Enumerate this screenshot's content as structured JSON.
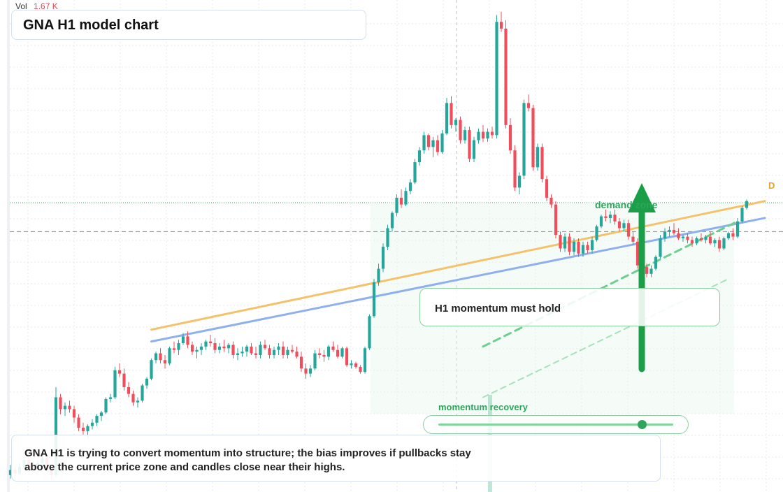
{
  "header": {
    "title": "GNA H1 model chart",
    "volume_label": "Vol",
    "volume_value": "1.67 K"
  },
  "annotations": {
    "callout": "H1 momentum must hold",
    "demand_zone": "demand zone",
    "momentum_label": "momentum recovery",
    "momentum_level": 0.86,
    "end_marker": "D",
    "summary": "GNA H1 is trying to convert momentum into structure; the bias improves if pullbacks stay above the current price zone and candles close near their highs."
  },
  "colors": {
    "up": "#26a69a",
    "down": "#ef4f5d",
    "orange_trendline": "#f5c26b",
    "blue_trendline": "#8fb0ee",
    "green_accent": "#2ea55b"
  },
  "chart_data": {
    "type": "candlestick",
    "title": "GNA H1 model chart",
    "series": [
      {
        "name": "GNA H1",
        "ohlc": [
          [
            1.0,
            1.6,
            0.8,
            1.3
          ],
          [
            1.3,
            1.5,
            0.9,
            1.1
          ],
          [
            1.1,
            1.7,
            1.0,
            1.5
          ],
          [
            1.5,
            2.1,
            1.3,
            1.9
          ],
          [
            1.9,
            2.3,
            1.4,
            1.6
          ],
          [
            1.6,
            1.8,
            1.2,
            1.4
          ],
          [
            1.4,
            1.9,
            1.2,
            1.7
          ],
          [
            1.7,
            2.2,
            1.5,
            2.0
          ],
          [
            2.0,
            2.1,
            1.3,
            1.5
          ],
          [
            1.5,
            1.6,
            0.8,
            1.0
          ],
          [
            1.0,
            6.2,
            0.9,
            5.6
          ],
          [
            5.6,
            5.8,
            4.6,
            4.9
          ],
          [
            4.9,
            5.3,
            4.5,
            5.1
          ],
          [
            5.1,
            5.4,
            4.7,
            4.9
          ],
          [
            4.9,
            5.1,
            4.1,
            4.4
          ],
          [
            4.4,
            4.6,
            3.6,
            3.8
          ],
          [
            3.8,
            4.1,
            3.4,
            3.6
          ],
          [
            3.6,
            4.0,
            3.2,
            3.9
          ],
          [
            3.9,
            4.3,
            3.7,
            4.1
          ],
          [
            4.1,
            4.6,
            3.9,
            4.5
          ],
          [
            4.5,
            4.8,
            4.2,
            4.7
          ],
          [
            4.7,
            5.6,
            4.6,
            5.5
          ],
          [
            5.5,
            5.8,
            5.3,
            5.6
          ],
          [
            5.6,
            7.4,
            5.5,
            7.2
          ],
          [
            7.2,
            7.6,
            6.8,
            7.0
          ],
          [
            7.0,
            7.3,
            6.0,
            6.2
          ],
          [
            6.2,
            6.5,
            5.6,
            5.8
          ],
          [
            5.8,
            6.0,
            5.1,
            5.3
          ],
          [
            5.3,
            5.6,
            5.0,
            5.4
          ],
          [
            5.4,
            6.4,
            5.3,
            6.3
          ],
          [
            6.3,
            6.8,
            6.1,
            6.7
          ],
          [
            6.7,
            7.9,
            6.6,
            7.8
          ],
          [
            7.8,
            8.3,
            7.6,
            8.2
          ],
          [
            8.2,
            8.5,
            7.6,
            7.8
          ],
          [
            7.8,
            8.1,
            7.3,
            7.6
          ],
          [
            7.6,
            8.6,
            7.5,
            8.5
          ],
          [
            8.5,
            8.9,
            8.2,
            8.4
          ],
          [
            8.4,
            9.0,
            8.1,
            8.8
          ],
          [
            8.8,
            9.4,
            8.7,
            9.2
          ],
          [
            9.2,
            9.5,
            8.5,
            8.7
          ],
          [
            8.7,
            8.9,
            8.1,
            8.3
          ],
          [
            8.3,
            8.6,
            7.9,
            8.4
          ],
          [
            8.4,
            8.8,
            8.1,
            8.6
          ],
          [
            8.6,
            9.0,
            8.4,
            8.9
          ],
          [
            8.9,
            9.3,
            8.6,
            8.8
          ],
          [
            8.8,
            9.1,
            8.2,
            8.4
          ],
          [
            8.4,
            8.8,
            8.2,
            8.6
          ],
          [
            8.6,
            9.0,
            8.3,
            8.5
          ],
          [
            8.5,
            8.8,
            8.2,
            8.7
          ],
          [
            8.7,
            8.9,
            7.9,
            8.1
          ],
          [
            8.1,
            8.5,
            7.8,
            8.2
          ],
          [
            8.2,
            8.6,
            8.0,
            8.3
          ],
          [
            8.3,
            8.7,
            8.0,
            8.6
          ],
          [
            8.6,
            8.8,
            8.1,
            8.2
          ],
          [
            8.2,
            8.6,
            7.9,
            8.1
          ],
          [
            8.1,
            8.9,
            7.9,
            8.7
          ],
          [
            8.7,
            9.0,
            8.4,
            8.5
          ],
          [
            8.5,
            8.7,
            7.9,
            8.1
          ],
          [
            8.1,
            8.6,
            7.9,
            8.4
          ],
          [
            8.4,
            8.8,
            8.1,
            8.6
          ],
          [
            8.6,
            8.9,
            7.9,
            8.1
          ],
          [
            8.1,
            8.6,
            7.9,
            8.4
          ],
          [
            8.4,
            8.7,
            8.2,
            8.3
          ],
          [
            8.3,
            8.6,
            7.9,
            8.0
          ],
          [
            8.0,
            8.3,
            7.1,
            7.3
          ],
          [
            7.3,
            7.6,
            6.7,
            7.0
          ],
          [
            7.0,
            7.5,
            6.8,
            7.3
          ],
          [
            7.3,
            8.4,
            7.2,
            8.2
          ],
          [
            8.2,
            8.5,
            7.9,
            8.1
          ],
          [
            8.1,
            8.4,
            7.7,
            8.0
          ],
          [
            8.0,
            8.7,
            7.8,
            8.6
          ],
          [
            8.6,
            8.9,
            8.3,
            8.4
          ],
          [
            8.4,
            8.7,
            7.9,
            8.0
          ],
          [
            8.0,
            8.6,
            7.9,
            8.5
          ],
          [
            8.5,
            8.6,
            7.4,
            7.5
          ],
          [
            7.5,
            7.8,
            7.3,
            7.6
          ],
          [
            7.6,
            7.7,
            7.3,
            7.4
          ],
          [
            7.4,
            7.5,
            7.0,
            7.1
          ],
          [
            7.1,
            8.6,
            7.0,
            8.5
          ],
          [
            8.5,
            10.5,
            8.4,
            10.4
          ],
          [
            10.4,
            12.6,
            10.3,
            12.4
          ],
          [
            12.4,
            13.5,
            12.2,
            13.2
          ],
          [
            13.2,
            14.7,
            13.0,
            14.5
          ],
          [
            14.5,
            15.8,
            14.3,
            15.6
          ],
          [
            15.6,
            16.6,
            15.4,
            16.5
          ],
          [
            16.5,
            17.6,
            16.3,
            17.4
          ],
          [
            17.4,
            17.9,
            16.8,
            17.0
          ],
          [
            17.0,
            18.0,
            16.9,
            17.8
          ],
          [
            17.8,
            18.5,
            17.6,
            18.3
          ],
          [
            18.3,
            19.7,
            18.2,
            19.5
          ],
          [
            19.5,
            20.4,
            19.3,
            20.2
          ],
          [
            20.2,
            21.3,
            20.0,
            21.1
          ],
          [
            21.1,
            21.2,
            20.2,
            20.4
          ],
          [
            20.4,
            21.0,
            19.8,
            20.8
          ],
          [
            20.8,
            21.1,
            19.9,
            20.1
          ],
          [
            20.1,
            21.4,
            20.0,
            21.2
          ],
          [
            21.2,
            23.3,
            21.1,
            23.0
          ],
          [
            23.0,
            23.4,
            21.5,
            21.7
          ],
          [
            21.7,
            22.1,
            21.3,
            22.0
          ],
          [
            22.0,
            22.2,
            20.6,
            20.8
          ],
          [
            20.8,
            21.6,
            20.6,
            21.4
          ],
          [
            21.4,
            21.6,
            19.5,
            19.7
          ],
          [
            19.7,
            21.0,
            19.5,
            20.8
          ],
          [
            20.8,
            21.5,
            20.6,
            21.3
          ],
          [
            21.3,
            21.7,
            20.7,
            20.9
          ],
          [
            20.9,
            21.5,
            20.7,
            21.3
          ],
          [
            21.3,
            21.6,
            20.9,
            21.1
          ],
          [
            21.1,
            28.2,
            20.9,
            27.8
          ],
          [
            27.8,
            28.4,
            27.2,
            27.4
          ],
          [
            27.4,
            27.9,
            21.5,
            21.7
          ],
          [
            21.7,
            22.1,
            20.0,
            20.2
          ],
          [
            20.2,
            20.5,
            17.8,
            18.0
          ],
          [
            18.0,
            18.9,
            17.6,
            18.7
          ],
          [
            18.7,
            23.2,
            18.5,
            23.0
          ],
          [
            23.0,
            23.5,
            22.5,
            22.7
          ],
          [
            22.7,
            22.9,
            19.0,
            19.2
          ],
          [
            19.2,
            20.6,
            19.0,
            20.4
          ],
          [
            20.4,
            20.6,
            18.3,
            18.5
          ],
          [
            18.5,
            18.7,
            17.2,
            17.4
          ],
          [
            17.4,
            17.6,
            16.8,
            17.0
          ],
          [
            17.0,
            17.2,
            15.0,
            15.2
          ],
          [
            15.2,
            15.4,
            14.2,
            14.4
          ],
          [
            14.4,
            15.3,
            14.2,
            15.1
          ],
          [
            15.1,
            15.3,
            14.0,
            14.2
          ],
          [
            14.2,
            15.0,
            14.0,
            14.8
          ],
          [
            14.8,
            15.0,
            13.9,
            14.1
          ],
          [
            14.1,
            14.8,
            13.9,
            14.6
          ],
          [
            14.6,
            14.8,
            14.1,
            14.3
          ],
          [
            14.3,
            15.1,
            14.1,
            14.9
          ],
          [
            14.9,
            15.8,
            14.8,
            15.7
          ],
          [
            15.7,
            16.4,
            15.6,
            16.3
          ],
          [
            16.3,
            16.7,
            16.0,
            16.2
          ],
          [
            16.2,
            16.6,
            15.9,
            16.4
          ],
          [
            16.4,
            16.7,
            15.8,
            16.0
          ],
          [
            16.0,
            16.2,
            15.4,
            15.6
          ],
          [
            15.6,
            16.1,
            15.4,
            15.9
          ],
          [
            15.9,
            16.1,
            14.9,
            15.1
          ],
          [
            15.1,
            15.4,
            14.6,
            14.8
          ],
          [
            14.8,
            15.0,
            13.2,
            13.4
          ],
          [
            13.4,
            13.8,
            12.9,
            13.3
          ],
          [
            13.3,
            13.5,
            12.7,
            12.9
          ],
          [
            12.9,
            13.4,
            12.7,
            13.2
          ],
          [
            13.2,
            14.0,
            13.1,
            13.9
          ],
          [
            13.9,
            15.2,
            13.8,
            15.0
          ],
          [
            15.0,
            15.6,
            14.8,
            15.4
          ],
          [
            15.4,
            15.7,
            15.1,
            15.5
          ],
          [
            15.5,
            15.9,
            15.2,
            15.3
          ],
          [
            15.3,
            15.6,
            14.9,
            15.0
          ],
          [
            15.0,
            15.2,
            14.8,
            15.1
          ],
          [
            15.1,
            15.3,
            14.7,
            14.9
          ],
          [
            14.9,
            15.1,
            14.5,
            14.7
          ],
          [
            14.7,
            15.1,
            14.6,
            15.0
          ],
          [
            15.0,
            15.3,
            14.8,
            14.9
          ],
          [
            14.9,
            15.2,
            14.7,
            15.1
          ],
          [
            15.1,
            15.4,
            14.6,
            14.7
          ],
          [
            14.7,
            15.0,
            14.5,
            14.9
          ],
          [
            14.9,
            15.1,
            14.2,
            14.4
          ],
          [
            14.4,
            15.1,
            14.3,
            15.0
          ],
          [
            15.0,
            15.4,
            14.9,
            15.3
          ],
          [
            15.3,
            15.6,
            14.9,
            15.1
          ],
          [
            15.1,
            16.2,
            15.0,
            16.0
          ],
          [
            16.0,
            16.9,
            15.9,
            16.8
          ],
          [
            16.8,
            17.3,
            16.7,
            17.2
          ]
        ]
      }
    ],
    "trendlines": [
      {
        "from_bar": 31,
        "from_price": 9.6,
        "to_bar": 166,
        "to_price": 17.2
      },
      {
        "from_bar": 31,
        "from_price": 8.9,
        "to_bar": 166,
        "to_price": 16.2
      },
      {
        "from_bar": 104,
        "from_price": 8.6,
        "to_bar": 160,
        "to_price": 16.0
      },
      {
        "from_bar": 104,
        "from_price": 5.6,
        "to_bar": 158,
        "to_price": 12.6
      }
    ],
    "price_range": [
      0,
      28.5
    ],
    "grid": true,
    "y_reference_lines": [
      17.1,
      15.4
    ]
  }
}
